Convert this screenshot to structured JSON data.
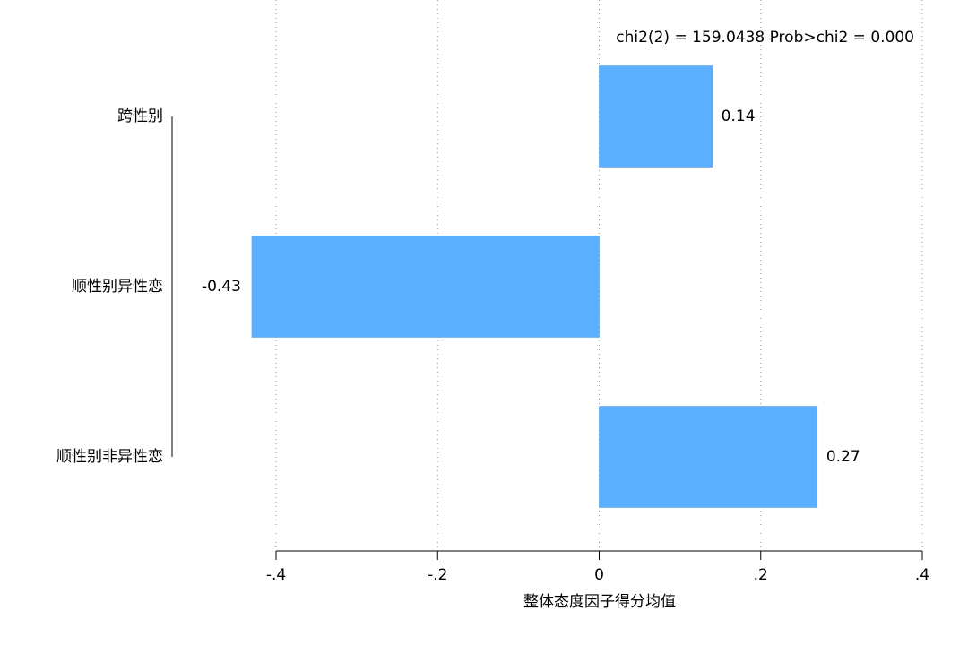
{
  "chart_data": {
    "type": "barh",
    "annotation": "chi2(2) = 159.0438  Prob>chi2 = 0.000",
    "x_label": "整体态度因子得分均值",
    "categories": [
      "跨性别",
      "顺性别异性恋",
      "顺性别非异性恋"
    ],
    "values": [
      0.14,
      -0.43,
      0.27
    ],
    "color": "#5caeff",
    "xlim": [
      -0.4,
      0.4
    ],
    "xticks": [
      {
        "value": -0.4,
        "label": "-.4"
      },
      {
        "value": -0.2,
        "label": "-.2"
      },
      0,
      {
        "value": 0.2,
        "label": ".2"
      },
      {
        "value": 0.4,
        "label": ".4"
      }
    ],
    "grid": true
  }
}
